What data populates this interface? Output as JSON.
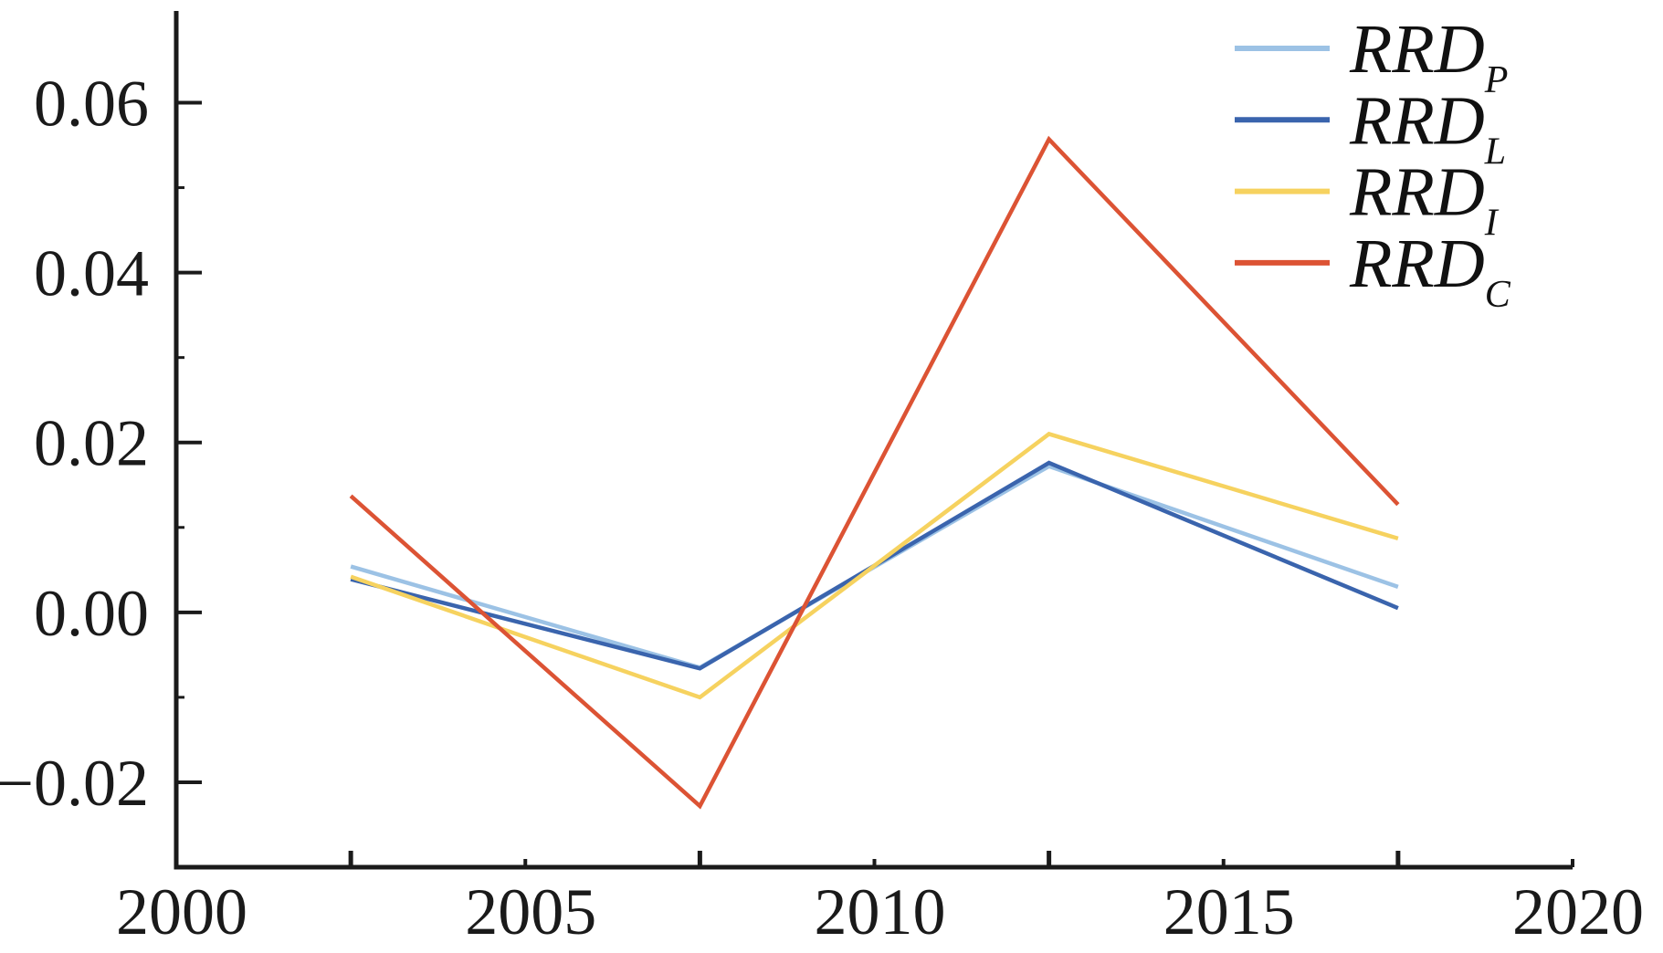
{
  "chart_data": {
    "type": "line",
    "title": "",
    "xlabel": "",
    "ylabel": "",
    "grid": false,
    "legend_position": "top-right",
    "x": [
      2002.5,
      2007.5,
      2012.5,
      2017.5
    ],
    "series": [
      {
        "name": "RRD_P",
        "label_main": "RRD",
        "label_sub": "P",
        "color": "#9CC2E5",
        "values": [
          0.0054,
          -0.0065,
          0.0172,
          0.003
        ]
      },
      {
        "name": "RRD_L",
        "label_main": "RRD",
        "label_sub": "L",
        "color": "#3A64AD",
        "values": [
          0.0039,
          -0.0066,
          0.0176,
          0.0005
        ]
      },
      {
        "name": "RRD_I",
        "label_main": "RRD",
        "label_sub": "I",
        "color": "#F6D25F",
        "values": [
          0.0042,
          -0.01,
          0.021,
          0.0087
        ]
      },
      {
        "name": "RRD_C",
        "label_main": "RRD",
        "label_sub": "C",
        "color": "#DC5334",
        "values": [
          0.0137,
          -0.0228,
          0.0557,
          0.0127
        ]
      }
    ],
    "xlim": [
      2000,
      2020
    ],
    "ylim": [
      -0.03,
      0.0708
    ],
    "x_labeled_ticks": [
      {
        "value": 2000,
        "label": "2000"
      },
      {
        "value": 2005,
        "label": "2005"
      },
      {
        "value": 2010,
        "label": "2010"
      },
      {
        "value": 2015,
        "label": "2015"
      },
      {
        "value": 2020,
        "label": "2020"
      }
    ],
    "x_major_ticks": [
      2002.5,
      2007.5,
      2012.5,
      2017.5
    ],
    "y_major_ticks": [
      {
        "value": 0.06,
        "label": "0.06"
      },
      {
        "value": 0.04,
        "label": "0.04"
      },
      {
        "value": 0.02,
        "label": "0.02"
      },
      {
        "value": 0.0,
        "label": "0.00"
      },
      {
        "value": -0.02,
        "label": "−0.02"
      }
    ],
    "y_minor_ticks": [
      0.05,
      0.03,
      0.01,
      -0.01
    ]
  }
}
